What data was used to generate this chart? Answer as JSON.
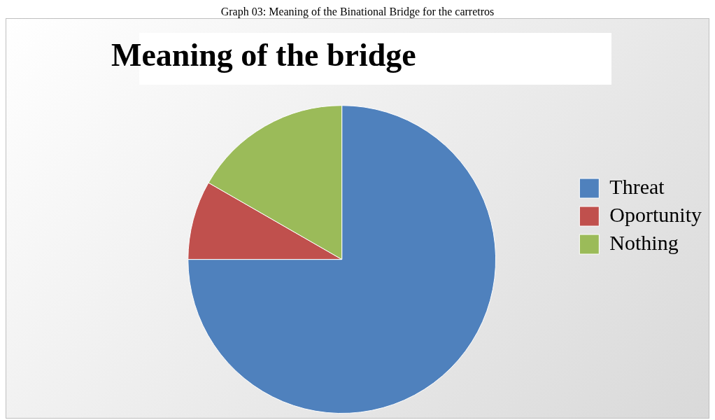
{
  "chart_data": {
    "type": "pie",
    "title": "Meaning of the bridge",
    "annotations": [
      "Graph 03: Meaning of the Binational Bridge for the carretros"
    ],
    "categories": [
      "Threat",
      "Oportunity",
      "Nothing"
    ],
    "values": [
      75,
      8.3,
      16.7
    ],
    "colors": [
      "#4f81bd",
      "#c0504d",
      "#9bbb59"
    ],
    "legend": "right"
  }
}
